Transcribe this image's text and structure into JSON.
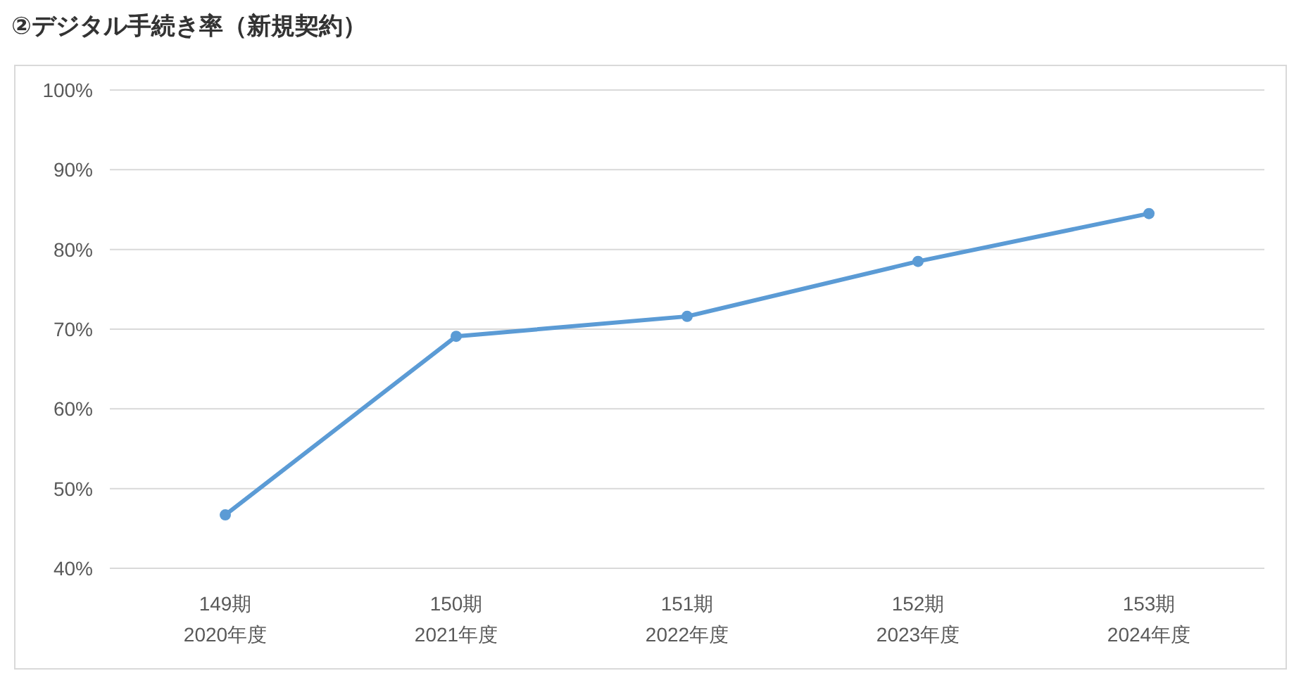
{
  "chart_data": {
    "type": "line",
    "title": "②デジタル手続き率（新規契約）",
    "categories": [
      "149期\n2020年度",
      "150期\n2021年度",
      "151期\n2022年度",
      "152期\n2023年度",
      "153期\n2024年度"
    ],
    "series": [
      {
        "color": "#5b9bd5",
        "values": [
          46.7,
          69.1,
          71.6,
          78.5,
          84.5
        ]
      }
    ],
    "ylim": [
      40,
      100
    ],
    "yticks": [
      {
        "value": 40,
        "label": "40%"
      },
      {
        "value": 50,
        "label": "50%"
      },
      {
        "value": 60,
        "label": "60%"
      },
      {
        "value": 70,
        "label": "70%"
      },
      {
        "value": 80,
        "label": "80%"
      },
      {
        "value": 90,
        "label": "90%"
      },
      {
        "value": 100,
        "label": "100%"
      }
    ],
    "grid": "y",
    "marker": "circle",
    "line_style": "solid"
  }
}
